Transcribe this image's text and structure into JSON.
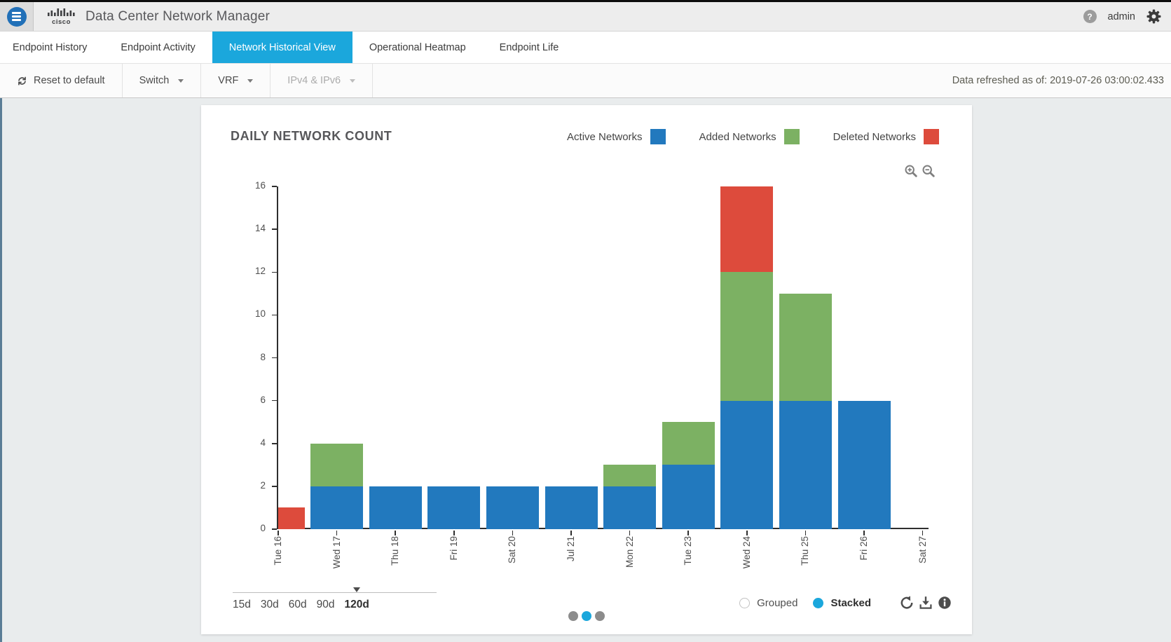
{
  "header": {
    "app_title": "Data Center Network Manager",
    "username": "admin",
    "icons": [
      "hamburger-icon",
      "cisco-logo",
      "help-icon",
      "gear-icon"
    ]
  },
  "tabs": [
    {
      "label": "Endpoint History",
      "active": false
    },
    {
      "label": "Endpoint Activity",
      "active": false
    },
    {
      "label": "Network Historical View",
      "active": true
    },
    {
      "label": "Operational Heatmap",
      "active": false
    },
    {
      "label": "Endpoint Life",
      "active": false
    }
  ],
  "toolbar": {
    "reset_label": "Reset to default",
    "reset_icon": "refresh-icon",
    "dropdowns": [
      {
        "label": "Switch",
        "disabled": false
      },
      {
        "label": "VRF",
        "disabled": false
      },
      {
        "label": "IPv4 & IPv6",
        "disabled": true
      }
    ],
    "refresh_status": "Data refreshed as of: 2019-07-26 03:00:02.433"
  },
  "chart_data": {
    "type": "bar",
    "stacked": true,
    "title": "DAILY NETWORK COUNT",
    "categories": [
      "Tue 16",
      "Wed 17",
      "Thu 18",
      "Fri 19",
      "Sat 20",
      "Jul 21",
      "Mon 22",
      "Tue 23",
      "Wed 24",
      "Thu 25",
      "Fri 26",
      "Sat 27"
    ],
    "series": [
      {
        "name": "Active Networks",
        "color": "#2279be",
        "values": [
          0,
          2,
          2,
          2,
          2,
          2,
          2,
          3,
          6,
          6,
          6,
          0
        ]
      },
      {
        "name": "Added Networks",
        "color": "#7cb163",
        "values": [
          0,
          2,
          0,
          0,
          0,
          0,
          1,
          2,
          6,
          5,
          0,
          0
        ]
      },
      {
        "name": "Deleted Networks",
        "color": "#dd4b3c",
        "values": [
          1,
          0,
          0,
          0,
          0,
          0,
          0,
          0,
          4,
          0,
          0,
          0
        ]
      }
    ],
    "ylim": [
      0,
      16
    ],
    "ytick_step": 2,
    "xlabel": "",
    "ylabel": "",
    "grid": false,
    "legend_position": "top-right",
    "toolbar_icons": [
      "zoom-in-icon",
      "zoom-out-icon"
    ]
  },
  "chart_controls": {
    "ranges": [
      "15d",
      "30d",
      "60d",
      "90d",
      "120d"
    ],
    "selected_range": "120d",
    "modes": [
      {
        "label": "Grouped",
        "selected": false
      },
      {
        "label": "Stacked",
        "selected": true
      }
    ],
    "icons": [
      "rotate-ccw-icon",
      "download-icon",
      "info-icon"
    ],
    "pagination": {
      "dots": 3,
      "active_index": 1
    }
  },
  "colors": {
    "accent_blue": "#1ba7dc",
    "header_bg": "#ededed",
    "page_bg": "#e9eced",
    "axis": "#2e2e2e"
  }
}
